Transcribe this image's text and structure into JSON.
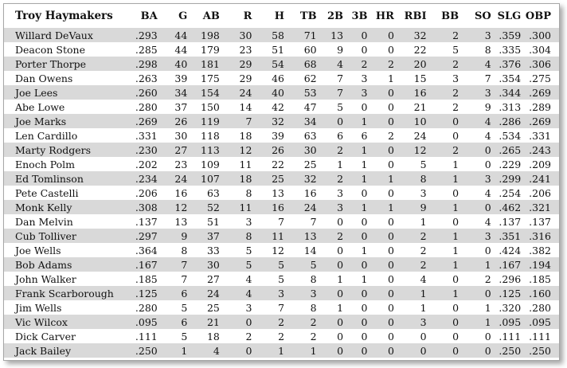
{
  "table": {
    "team": "Troy Haymakers",
    "columns": [
      "BA",
      "G",
      "AB",
      "R",
      "H",
      "TB",
      "2B",
      "3B",
      "HR",
      "RBI",
      "BB",
      "SO",
      "SLG",
      "OBP"
    ],
    "rows": [
      {
        "name": "Willard DeVaux",
        "stats": [
          ".293",
          "44",
          "198",
          "30",
          "58",
          "71",
          "13",
          "0",
          "0",
          "32",
          "2",
          "3",
          ".359",
          ".300"
        ]
      },
      {
        "name": "Deacon Stone",
        "stats": [
          ".285",
          "44",
          "179",
          "23",
          "51",
          "60",
          "9",
          "0",
          "0",
          "22",
          "5",
          "8",
          ".335",
          ".304"
        ]
      },
      {
        "name": "Porter Thorpe",
        "stats": [
          ".298",
          "40",
          "181",
          "29",
          "54",
          "68",
          "4",
          "2",
          "2",
          "20",
          "2",
          "4",
          ".376",
          ".306"
        ]
      },
      {
        "name": "Dan Owens",
        "stats": [
          ".263",
          "39",
          "175",
          "29",
          "46",
          "62",
          "7",
          "3",
          "1",
          "15",
          "3",
          "7",
          ".354",
          ".275"
        ]
      },
      {
        "name": "Joe Lees",
        "stats": [
          ".260",
          "34",
          "154",
          "24",
          "40",
          "53",
          "7",
          "3",
          "0",
          "16",
          "2",
          "3",
          ".344",
          ".269"
        ]
      },
      {
        "name": "Abe Lowe",
        "stats": [
          ".280",
          "37",
          "150",
          "14",
          "42",
          "47",
          "5",
          "0",
          "0",
          "21",
          "2",
          "9",
          ".313",
          ".289"
        ]
      },
      {
        "name": "Joe Marks",
        "stats": [
          ".269",
          "26",
          "119",
          "7",
          "32",
          "34",
          "0",
          "1",
          "0",
          "10",
          "0",
          "4",
          ".286",
          ".269"
        ]
      },
      {
        "name": "Len Cardillo",
        "stats": [
          ".331",
          "30",
          "118",
          "18",
          "39",
          "63",
          "6",
          "6",
          "2",
          "24",
          "0",
          "4",
          ".534",
          ".331"
        ]
      },
      {
        "name": "Marty Rodgers",
        "stats": [
          ".230",
          "27",
          "113",
          "12",
          "26",
          "30",
          "2",
          "1",
          "0",
          "12",
          "2",
          "0",
          ".265",
          ".243"
        ]
      },
      {
        "name": "Enoch Polm",
        "stats": [
          ".202",
          "23",
          "109",
          "11",
          "22",
          "25",
          "1",
          "1",
          "0",
          "5",
          "1",
          "0",
          ".229",
          ".209"
        ]
      },
      {
        "name": "Ed Tomlinson",
        "stats": [
          ".234",
          "24",
          "107",
          "18",
          "25",
          "32",
          "2",
          "1",
          "1",
          "8",
          "1",
          "3",
          ".299",
          ".241"
        ]
      },
      {
        "name": "Pete Castelli",
        "stats": [
          ".206",
          "16",
          "63",
          "8",
          "13",
          "16",
          "3",
          "0",
          "0",
          "3",
          "0",
          "4",
          ".254",
          ".206"
        ]
      },
      {
        "name": "Monk Kelly",
        "stats": [
          ".308",
          "12",
          "52",
          "11",
          "16",
          "24",
          "3",
          "1",
          "1",
          "9",
          "1",
          "0",
          ".462",
          ".321"
        ]
      },
      {
        "name": "Dan Melvin",
        "stats": [
          ".137",
          "13",
          "51",
          "3",
          "7",
          "7",
          "0",
          "0",
          "0",
          "1",
          "0",
          "4",
          ".137",
          ".137"
        ]
      },
      {
        "name": "Cub Tolliver",
        "stats": [
          ".297",
          "9",
          "37",
          "8",
          "11",
          "13",
          "2",
          "0",
          "0",
          "2",
          "1",
          "3",
          ".351",
          ".316"
        ]
      },
      {
        "name": "Joe Wells",
        "stats": [
          ".364",
          "8",
          "33",
          "5",
          "12",
          "14",
          "0",
          "1",
          "0",
          "2",
          "1",
          "0",
          ".424",
          ".382"
        ]
      },
      {
        "name": "Bob Adams",
        "stats": [
          ".167",
          "7",
          "30",
          "5",
          "5",
          "5",
          "0",
          "0",
          "0",
          "2",
          "1",
          "1",
          ".167",
          ".194"
        ]
      },
      {
        "name": "John Walker",
        "stats": [
          ".185",
          "7",
          "27",
          "4",
          "5",
          "8",
          "1",
          "1",
          "0",
          "4",
          "0",
          "2",
          ".296",
          ".185"
        ]
      },
      {
        "name": "Frank Scarborough",
        "stats": [
          ".125",
          "6",
          "24",
          "4",
          "3",
          "3",
          "0",
          "0",
          "0",
          "1",
          "1",
          "0",
          ".125",
          ".160"
        ]
      },
      {
        "name": "Jim Wells",
        "stats": [
          ".280",
          "5",
          "25",
          "3",
          "7",
          "8",
          "1",
          "0",
          "0",
          "1",
          "0",
          "1",
          ".320",
          ".280"
        ]
      },
      {
        "name": "Vic Wilcox",
        "stats": [
          ".095",
          "6",
          "21",
          "0",
          "2",
          "2",
          "0",
          "0",
          "0",
          "3",
          "0",
          "1",
          ".095",
          ".095"
        ]
      },
      {
        "name": "Dick Carver",
        "stats": [
          ".111",
          "5",
          "18",
          "2",
          "2",
          "2",
          "0",
          "0",
          "0",
          "0",
          "0",
          "0",
          ".111",
          ".111"
        ]
      },
      {
        "name": "Jack Bailey",
        "stats": [
          ".250",
          "1",
          "4",
          "0",
          "1",
          "1",
          "0",
          "0",
          "0",
          "0",
          "0",
          "0",
          ".250",
          ".250"
        ]
      }
    ]
  }
}
